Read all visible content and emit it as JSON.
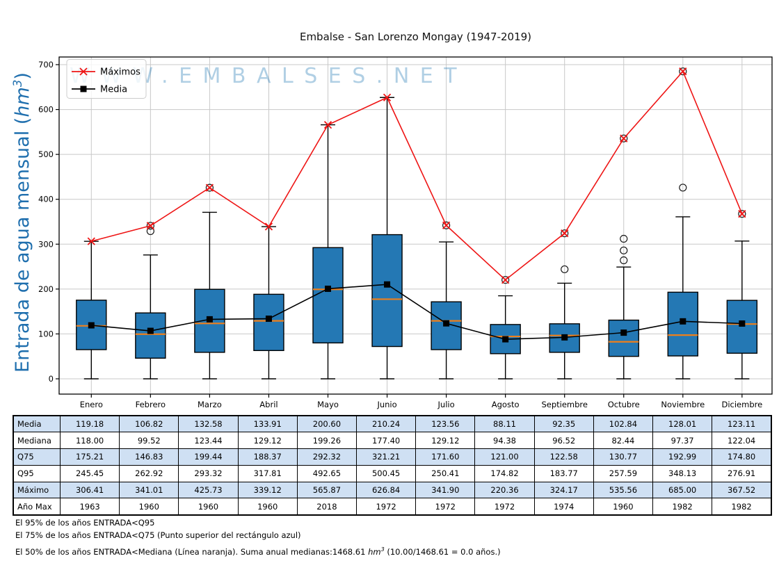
{
  "title": "Embalse - San Lorenzo Mongay (1947-2019)",
  "watermark": "WWW.EMBALSES.NET",
  "ylabel": {
    "pre": "Entrada de agua mensual (",
    "unit": "hm",
    "sup": "3",
    "post": ")"
  },
  "legend": {
    "position": "upper-left",
    "items": [
      "Máximos",
      "Media"
    ]
  },
  "colors": {
    "box_fill": "#2478b4",
    "box_edge": "#000000",
    "median_line": "#ef7f1a",
    "maximos_line": "#ee1515",
    "media_line": "#000000",
    "grid": "#c8c8c8",
    "ylabel_text": "#1f6fae",
    "watermark_text": "#1f77b4",
    "table_shaded_row": "#cfe0f3"
  },
  "chart_data": {
    "type": "boxplot",
    "title": "Embalse - San Lorenzo Mongay (1947-2019)",
    "ylabel": "Entrada de agua mensual (hm3)",
    "categories": [
      "Enero",
      "Febrero",
      "Marzo",
      "Abril",
      "Mayo",
      "Junio",
      "Julio",
      "Agosto",
      "Septiembre",
      "Octubre",
      "Noviembre",
      "Diciembre"
    ],
    "yticks": [
      0,
      100,
      200,
      300,
      400,
      500,
      600,
      700
    ],
    "ylim": [
      -33,
      717
    ],
    "grid": true,
    "legend_position": "upper left",
    "series": [
      {
        "name": "Máximos",
        "type": "line",
        "marker": "x",
        "color": "#ee1515",
        "values": [
          306.41,
          341.01,
          425.73,
          339.12,
          565.87,
          626.84,
          341.9,
          220.36,
          324.17,
          535.56,
          685.0,
          367.52
        ]
      },
      {
        "name": "Media",
        "type": "line",
        "marker": "square",
        "color": "#000000",
        "values": [
          119.18,
          106.82,
          132.58,
          133.91,
          200.6,
          210.24,
          123.56,
          88.11,
          92.35,
          102.84,
          128.01,
          123.11
        ]
      }
    ],
    "boxes": {
      "median": [
        118.0,
        99.52,
        123.44,
        129.12,
        199.26,
        177.4,
        129.12,
        94.38,
        96.52,
        82.44,
        97.37,
        122.04
      ],
      "q25_est": [
        65,
        46,
        59,
        63,
        80,
        72,
        65,
        56,
        59,
        50,
        51,
        57
      ],
      "q75": [
        175.21,
        146.83,
        199.44,
        188.37,
        292.32,
        321.21,
        171.6,
        121.0,
        122.58,
        130.77,
        192.99,
        174.8
      ],
      "whisker_low": [
        0,
        0,
        0,
        0,
        0,
        0,
        0,
        0,
        0,
        0,
        0,
        0
      ],
      "whisker_high_est": [
        306.41,
        276,
        371,
        339.12,
        565.87,
        626.84,
        305,
        185,
        213,
        249,
        361,
        307
      ],
      "outliers_est": [
        [],
        [
          329,
          341.01
        ],
        [
          425.73
        ],
        [],
        [],
        [],
        [
          341.9
        ],
        [
          220.36
        ],
        [
          244,
          324.17
        ],
        [
          264,
          286,
          312,
          535.56
        ],
        [
          426,
          685.0
        ],
        [
          367.52
        ]
      ]
    }
  },
  "table": {
    "row_labels": [
      "Media",
      "Mediana",
      "Q75",
      "Q95",
      "Máximo",
      "Año Max"
    ],
    "row_shaded": [
      true,
      false,
      true,
      false,
      true,
      false
    ],
    "rows": [
      [
        "119.18",
        "106.82",
        "132.58",
        "133.91",
        "200.60",
        "210.24",
        "123.56",
        "88.11",
        "92.35",
        "102.84",
        "128.01",
        "123.11"
      ],
      [
        "118.00",
        "99.52",
        "123.44",
        "129.12",
        "199.26",
        "177.40",
        "129.12",
        "94.38",
        "96.52",
        "82.44",
        "97.37",
        "122.04"
      ],
      [
        "175.21",
        "146.83",
        "199.44",
        "188.37",
        "292.32",
        "321.21",
        "171.60",
        "121.00",
        "122.58",
        "130.77",
        "192.99",
        "174.80"
      ],
      [
        "245.45",
        "262.92",
        "293.32",
        "317.81",
        "492.65",
        "500.45",
        "250.41",
        "174.82",
        "183.77",
        "257.59",
        "348.13",
        "276.91"
      ],
      [
        "306.41",
        "341.01",
        "425.73",
        "339.12",
        "565.87",
        "626.84",
        "341.90",
        "220.36",
        "324.17",
        "535.56",
        "685.00",
        "367.52"
      ],
      [
        "1963",
        "1960",
        "1960",
        "1960",
        "2018",
        "1972",
        "1972",
        "1972",
        "1974",
        "1960",
        "1982",
        "1982"
      ]
    ]
  },
  "footnotes": {
    "line1": "El 95% de los años ENTRADA<Q95",
    "line2": "El 75% de los años ENTRADA<Q75 (Punto superior del rectángulo azul)",
    "line3_pre": "El 50% de los años ENTRADA<Mediana (Línea naranja). Suma anual medianas:1468.61 ",
    "line3_unit": "hm",
    "line3_sup": "3",
    "line3_post": " (10.00/1468.61 = 0.0 años.)"
  }
}
